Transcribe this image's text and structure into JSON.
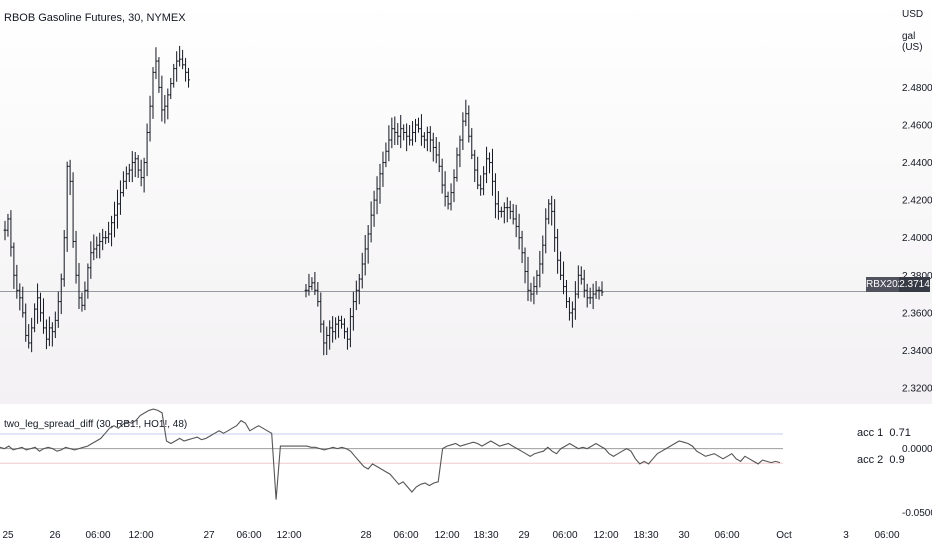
{
  "header": {
    "symbol_title": "RBOB Gasoline Futures, 30, NYMEX",
    "currency": "USD",
    "unit": "gal (US)"
  },
  "indicator": {
    "title": "two_leg_spread_diff (30, RB1!, HO1!, 48)",
    "acc1_label": "acc 1",
    "acc1_value": "0.71",
    "acc2_label": "acc 2",
    "acc2_value": "0.9"
  },
  "price_tag": {
    "symbol": "RBX2022",
    "price": "2.3714"
  },
  "colors": {
    "bars": "#131722",
    "indicator_line": "#555555",
    "zero_line": "#9e9e9e",
    "upper_band": "#c8cdf2",
    "lower_band": "#f2c8cd",
    "tag_bg_dark": "#50535e",
    "tag_bg_darker": "#363a45"
  },
  "chart_data": [
    {
      "type": "ohlc",
      "title": "RBOB Gasoline Futures, 30, NYMEX",
      "ylim": [
        2.3115,
        2.5265
      ],
      "y_ticks": [
        "2.4800",
        "2.4600",
        "2.4400",
        "2.4200",
        "2.4000",
        "2.3800",
        "2.3600",
        "2.3400",
        "2.3200"
      ],
      "y_tick_values": [
        2.48,
        2.46,
        2.44,
        2.42,
        2.4,
        2.38,
        2.36,
        2.34,
        2.32
      ],
      "x_ticks": [
        "25",
        "26",
        "06:00",
        "12:00",
        "27",
        "06:00",
        "12:00",
        "28",
        "06:00",
        "12:00",
        "18:30",
        "29",
        "06:00",
        "12:00",
        "18:30",
        "30",
        "06:00",
        "Oct",
        "3",
        "06:00"
      ],
      "last_price": 2.3714,
      "segments": [
        {
          "closes": [
            2.404,
            2.41,
            2.395,
            2.38,
            2.372,
            2.368,
            2.36,
            2.348,
            2.344,
            2.352,
            2.362,
            2.368,
            2.36,
            2.352,
            2.346,
            2.352,
            2.35,
            2.356,
            2.366,
            2.378,
            2.4,
            2.438,
            2.43,
            2.398,
            2.38,
            2.368,
            2.364,
            2.372,
            2.384,
            2.392,
            2.394,
            2.396,
            2.398,
            2.4,
            2.4,
            2.402,
            2.408,
            2.412,
            2.418,
            2.424,
            2.43,
            2.434,
            2.436,
            2.44,
            2.442,
            2.436,
            2.432,
            2.44,
            2.456,
            2.47,
            2.488,
            2.494,
            2.48,
            2.468,
            2.47,
            2.476,
            2.482,
            2.49,
            2.494,
            2.495,
            2.492,
            2.488,
            2.484
          ]
        },
        {
          "closes": [
            2.372,
            2.374,
            2.376,
            2.372,
            2.366,
            2.354,
            2.344,
            2.348,
            2.352,
            2.35,
            2.354,
            2.356,
            2.354,
            2.35,
            2.346,
            2.358,
            2.366,
            2.372,
            2.378,
            2.386,
            2.394,
            2.402,
            2.412,
            2.42,
            2.426,
            2.434,
            2.44,
            2.446,
            2.452,
            2.458,
            2.456,
            2.454,
            2.458,
            2.456,
            2.454,
            2.452,
            2.456,
            2.46,
            2.458,
            2.454,
            2.452,
            2.456,
            2.452,
            2.448,
            2.444,
            2.438,
            2.428,
            2.422,
            2.418,
            2.424,
            2.432,
            2.444,
            2.452,
            2.462,
            2.466,
            2.454,
            2.444,
            2.436,
            2.428,
            2.426,
            2.434,
            2.442,
            2.44,
            2.43,
            2.418,
            2.414,
            2.414,
            2.416,
            2.416,
            2.414,
            2.41,
            2.406,
            2.4,
            2.392,
            2.382,
            2.372,
            2.37,
            2.374,
            2.38,
            2.386,
            2.396,
            2.41,
            2.418,
            2.414,
            2.4,
            2.388,
            2.38,
            2.374,
            2.366,
            2.36,
            2.362,
            2.37,
            2.38,
            2.378,
            2.372,
            2.368,
            2.368,
            2.37,
            2.372,
            2.372,
            2.371
          ]
        }
      ]
    },
    {
      "type": "line",
      "title": "two_leg_spread_diff (30, RB1!, HO1!, 48)",
      "ylim": [
        -0.056,
        0.035
      ],
      "y_ticks": [
        "0.0000",
        "-0.0500"
      ],
      "y_tick_values": [
        0.0,
        -0.05
      ],
      "bands": [
        0.0115,
        -0.0115
      ],
      "values": [
        0.001,
        0.0,
        0.002,
        -0.001,
        0.0,
        0.001,
        -0.001,
        0.0,
        0.001,
        -0.002,
        0.0,
        0.001,
        0.0,
        -0.002,
        -0.001,
        0.001,
        0.0,
        -0.001,
        0.0,
        0.001,
        0.002,
        0.004,
        0.006,
        0.008,
        0.012,
        0.016,
        0.018,
        0.016,
        0.019,
        0.021,
        0.02,
        0.022,
        0.026,
        0.028,
        0.03,
        0.031,
        0.03,
        0.028,
        0.006,
        0.004,
        0.006,
        0.008,
        0.006,
        0.007,
        0.008,
        0.009,
        0.007,
        0.008,
        0.01,
        0.012,
        0.014,
        0.012,
        0.014,
        0.016,
        0.018,
        0.022,
        0.02,
        0.014,
        0.016,
        0.018,
        0.016,
        0.014,
        0.012,
        -0.04,
        0.002,
        0.002,
        0.002,
        0.002,
        0.002,
        0.002,
        0.002,
        0.001,
        0.001,
        0.0,
        -0.001,
        0.0,
        0.001,
        0.0,
        0.001,
        0.0,
        -0.002,
        -0.006,
        -0.01,
        -0.014,
        -0.016,
        -0.012,
        -0.014,
        -0.016,
        -0.018,
        -0.02,
        -0.024,
        -0.028,
        -0.026,
        -0.03,
        -0.034,
        -0.03,
        -0.028,
        -0.027,
        -0.029,
        -0.027,
        -0.026,
        0.0,
        0.002,
        0.003,
        0.004,
        0.002,
        0.003,
        0.004,
        0.005,
        0.004,
        0.002,
        0.004,
        0.006,
        0.004,
        0.002,
        0.003,
        0.004,
        0.002,
        0.0,
        -0.002,
        -0.004,
        -0.006,
        -0.004,
        -0.003,
        -0.002,
        0.001,
        -0.002,
        -0.004,
        0.0,
        0.002,
        0.004,
        0.002,
        0.0,
        0.001,
        0.0,
        0.002,
        0.004,
        0.002,
        0.0,
        -0.004,
        -0.006,
        -0.004,
        -0.002,
        0.0,
        -0.002,
        -0.008,
        -0.012,
        -0.01,
        -0.012,
        -0.008,
        -0.004,
        -0.002,
        0.0,
        0.002,
        0.004,
        0.006,
        0.005,
        0.004,
        0.002,
        -0.002,
        -0.004,
        -0.006,
        -0.005,
        -0.004,
        -0.006,
        -0.008,
        -0.006,
        -0.004,
        -0.008,
        -0.01,
        -0.006,
        -0.008,
        -0.01,
        -0.012,
        -0.009,
        -0.01,
        -0.011,
        -0.01,
        -0.011
      ]
    }
  ]
}
